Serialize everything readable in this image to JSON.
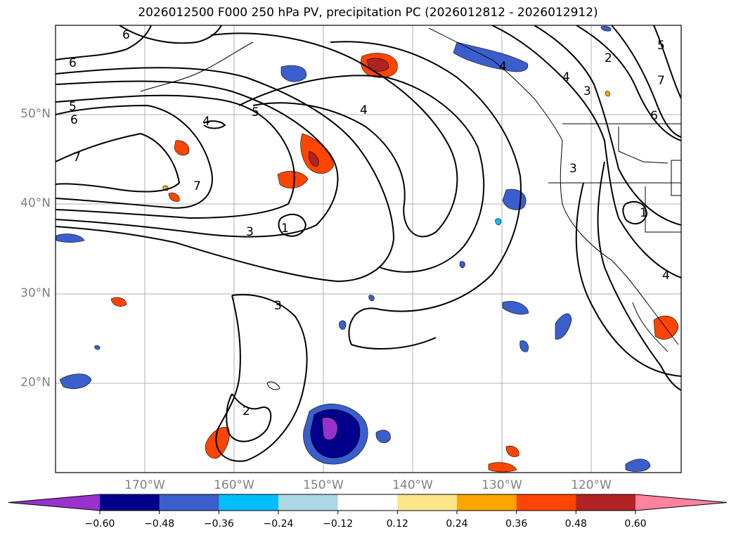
{
  "title": "2026012500 F000 250 hPa PV, precipitation PC (2026012812 - 2026012912)",
  "map": {
    "lon_range": [
      -180,
      -110
    ],
    "lat_range": [
      10,
      60
    ],
    "lat_labels": [
      "50°N",
      "40°N",
      "30°N",
      "20°N"
    ],
    "lon_labels": [
      "170°W",
      "160°W",
      "150°W",
      "140°W",
      "130°W",
      "120°W"
    ],
    "gridlines": true,
    "contour_variable": "250 hPa PV",
    "contour_labels": [
      "6",
      "6",
      "5",
      "6",
      "7",
      "4",
      "5",
      "7",
      "4",
      "3",
      "1",
      "3",
      "2",
      "4",
      "4",
      "2",
      "3",
      "5",
      "7",
      "6",
      "3",
      "1",
      "4"
    ],
    "shaded_variable": "precipitation PC"
  },
  "colorbar": {
    "ticks": [
      "−0.60",
      "−0.48",
      "−0.36",
      "−0.24",
      "−0.12",
      "0.12",
      "0.24",
      "0.36",
      "0.48",
      "0.60"
    ],
    "colors": [
      "#9932cc",
      "#00008b",
      "#3a5fcd",
      "#00bfff",
      "#add8e6",
      "#ffffff",
      "#fde68a",
      "#ffa500",
      "#ff4500",
      "#b22222",
      "#ff82a0"
    ],
    "extend": "both"
  }
}
